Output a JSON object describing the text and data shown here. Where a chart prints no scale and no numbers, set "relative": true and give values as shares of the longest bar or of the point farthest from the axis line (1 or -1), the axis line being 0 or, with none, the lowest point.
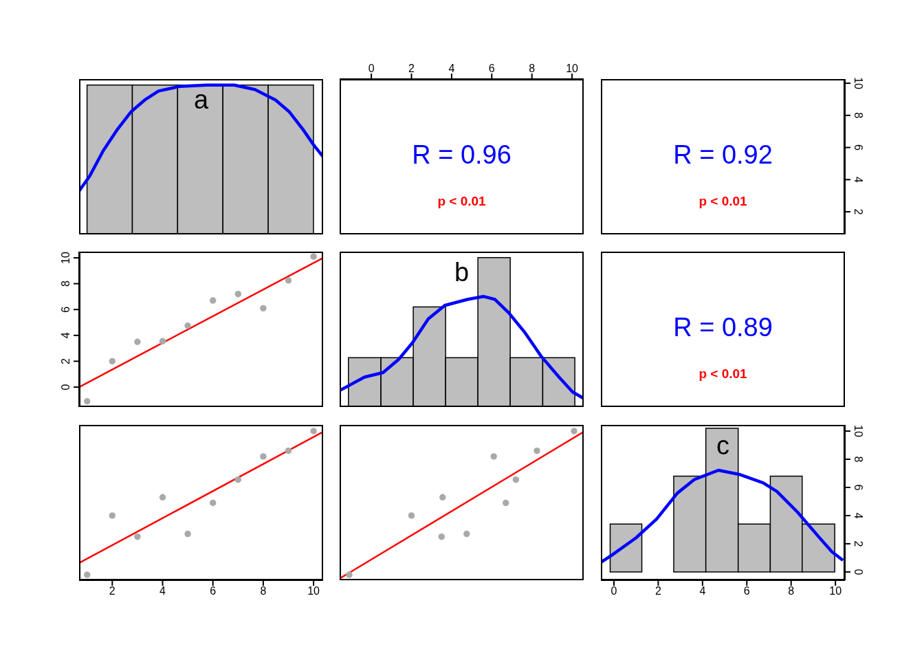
{
  "chart_data": [
    {
      "type": "histogram",
      "relative": true,
      "tick_labels": false,
      "xlim": [
        0.68,
        10.38
      ],
      "xticks": [
        2,
        4,
        6,
        8,
        10
      ],
      "annotations": [
        "a"
      ],
      "series": [
        {
          "bins": [
            1,
            2.8,
            4.6,
            6.4,
            8.2,
            10
          ],
          "values": [
            1,
            1,
            1,
            1,
            1
          ],
          "color": "#bebebe"
        },
        {
          "type": "line",
          "x": [
            0.68,
            1.1,
            1.64,
            2.19,
            2.74,
            3.29,
            3.84,
            4.66,
            5.75,
            6.85,
            7.67,
            8.49,
            9.04,
            9.59,
            10.0,
            10.38
          ],
          "values": [
            0.29,
            0.39,
            0.56,
            0.7,
            0.82,
            0.9,
            0.96,
            0.99,
            1.0,
            1.0,
            0.97,
            0.9,
            0.82,
            0.7,
            0.6,
            0.52
          ],
          "color": "#0000ff"
        }
      ]
    },
    {
      "type": "scatter",
      "tick_labels": "x",
      "xlim": [
        -1.58,
        10.58
      ],
      "xticks": [
        0,
        2,
        4,
        6,
        8,
        10
      ],
      "ylim": [
        0.59,
        10.26
      ],
      "yticks": [
        2,
        4,
        6,
        8,
        10
      ],
      "annotations": [
        "R = 0.96",
        "p < 0.01"
      ]
    },
    {
      "type": "scatter",
      "tick_labels": "y",
      "xlim": [
        -0.59,
        10.43
      ],
      "xticks": [
        0,
        2,
        4,
        6,
        8,
        10
      ],
      "ylim": [
        0.59,
        10.26
      ],
      "yticks": [
        2,
        4,
        6,
        8,
        10
      ],
      "annotations": [
        "R = 0.92",
        "p < 0.01"
      ]
    },
    {
      "type": "scatter",
      "tick_labels": "y",
      "xlim": [
        0.68,
        10.38
      ],
      "xticks": [
        2,
        4,
        6,
        8,
        10
      ],
      "ylim": [
        -1.54,
        10.48
      ],
      "yticks": [
        0,
        2,
        4,
        6,
        8,
        10
      ],
      "series": [
        {
          "marker": "circle",
          "x": [
            1,
            2,
            3,
            4,
            5,
            6,
            7,
            8,
            9,
            10
          ],
          "values": [
            -1.1,
            2.0,
            3.5,
            3.55,
            4.75,
            6.7,
            7.2,
            6.1,
            8.25,
            10.1
          ],
          "color": "#a9a9a9"
        },
        {
          "type": "line",
          "x": [
            0.68,
            10.38
          ],
          "values": [
            0.0,
            10.0
          ],
          "color": "#ff0000"
        }
      ]
    },
    {
      "type": "histogram",
      "relative": true,
      "tick_labels": false,
      "xlim": [
        -1.58,
        10.58
      ],
      "xticks": [
        0,
        2,
        4,
        6,
        8,
        10
      ],
      "annotations": [
        "b"
      ],
      "series": [
        {
          "bins": [
            -1.14,
            0.48,
            2.09,
            3.7,
            5.31,
            6.92,
            8.54,
            10.14
          ],
          "values": [
            0.33,
            0.33,
            0.67,
            0.33,
            1,
            0.33,
            0.33
          ],
          "color": "#bebebe"
        },
        {
          "type": "line",
          "x": [
            -1.58,
            -0.34,
            0.58,
            1.37,
            2.05,
            2.84,
            3.66,
            4.79,
            5.58,
            6.16,
            6.85,
            7.64,
            8.46,
            9.35,
            10.03,
            10.55
          ],
          "values": [
            0.11,
            0.2,
            0.23,
            0.32,
            0.43,
            0.59,
            0.68,
            0.72,
            0.74,
            0.72,
            0.63,
            0.5,
            0.34,
            0.2,
            0.1,
            0.06
          ],
          "color": "#0000ff"
        }
      ]
    },
    {
      "type": "other",
      "annotations": [
        "R = 0.89",
        "p < 0.01"
      ]
    },
    {
      "type": "scatter",
      "tick_labels": "x",
      "xlim": [
        0.68,
        10.38
      ],
      "xticks": [
        2,
        4,
        6,
        8,
        10
      ],
      "ylim": [
        -0.59,
        10.44
      ],
      "yticks": [
        0,
        2,
        4,
        6,
        8,
        10
      ],
      "series": [
        {
          "marker": "circle",
          "x": [
            1,
            2,
            3,
            4,
            5,
            6,
            7,
            8,
            9,
            10
          ],
          "values": [
            -0.2,
            4.0,
            2.5,
            5.3,
            2.7,
            4.9,
            6.55,
            8.2,
            8.6,
            10.0
          ],
          "color": "#a9a9a9"
        },
        {
          "type": "line",
          "x": [
            0.68,
            10.38
          ],
          "values": [
            0.63,
            9.95
          ],
          "color": "#ff0000"
        }
      ]
    },
    {
      "type": "scatter",
      "tick_labels": false,
      "xlim": [
        -1.58,
        10.58
      ],
      "xticks": [
        0,
        2,
        4,
        6,
        8,
        10
      ],
      "ylim": [
        -0.59,
        10.44
      ],
      "yticks": [
        0,
        2,
        4,
        6,
        8,
        10
      ],
      "series": [
        {
          "marker": "circle",
          "x": [
            -1.1,
            2.0,
            3.5,
            3.55,
            4.75,
            6.7,
            7.2,
            6.1,
            8.25,
            10.1
          ],
          "values": [
            -0.2,
            4.0,
            2.5,
            5.3,
            2.7,
            4.9,
            6.55,
            8.2,
            8.6,
            10.0
          ],
          "color": "#a9a9a9"
        },
        {
          "type": "line",
          "x": [
            -1.58,
            10.58
          ],
          "values": [
            -0.47,
            9.95
          ],
          "color": "#ff0000"
        }
      ]
    },
    {
      "type": "histogram",
      "xlim": [
        -0.59,
        10.43
      ],
      "xticks": [
        0,
        2,
        4,
        6,
        8,
        10
      ],
      "ylim": [
        -0.59,
        10.44
      ],
      "yticks": [
        0,
        2,
        4,
        6,
        8,
        10
      ],
      "annotations": [
        "c"
      ],
      "series": [
        {
          "bins": [
            -0.17,
            1.26,
            2.7,
            4.15,
            5.61,
            7.06,
            8.5,
            9.97
          ],
          "values": [
            3.4,
            0,
            6.8,
            10.2,
            3.4,
            6.8,
            3.4
          ],
          "color": "#bebebe"
        },
        {
          "type": "line",
          "x": [
            -0.56,
            -0.09,
            0.99,
            1.93,
            2.86,
            3.63,
            4.72,
            5.65,
            6.74,
            7.36,
            8.29,
            9.22,
            9.84,
            10.34
          ],
          "values": [
            0.71,
            1.2,
            2.41,
            3.76,
            5.59,
            6.56,
            7.22,
            6.93,
            6.32,
            5.71,
            4.24,
            2.54,
            1.44,
            0.83
          ],
          "color": "#0000ff"
        }
      ]
    }
  ]
}
